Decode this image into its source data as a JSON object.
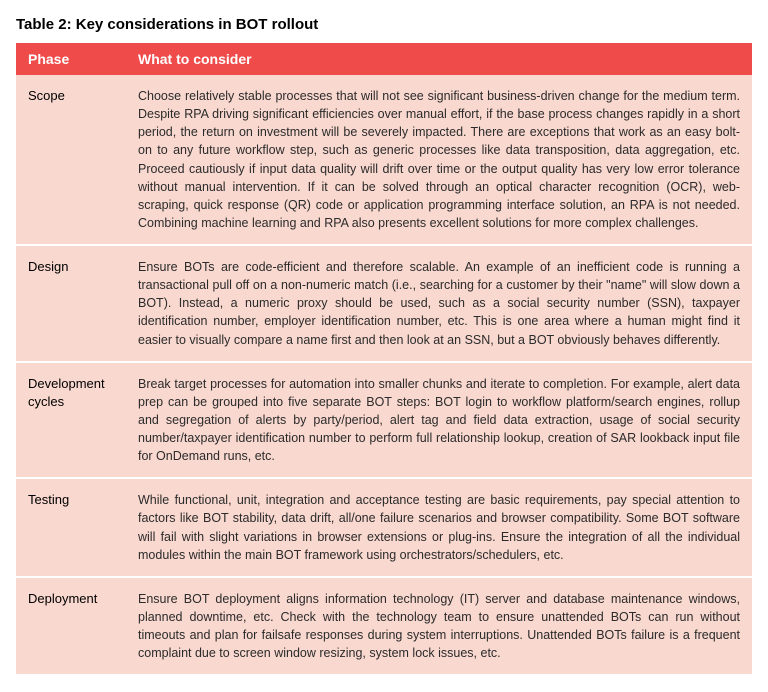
{
  "table": {
    "title": "Table 2:  Key considerations in BOT rollout",
    "columns": [
      "Phase",
      "What to consider"
    ],
    "header_bg": "#ef4b4b",
    "header_fg": "#ffffff",
    "body_bg": "#f9d8cf",
    "body_fg": "#2b2b2b",
    "rows": [
      {
        "phase": "Scope",
        "text": "Choose relatively stable processes that will not see significant business-driven change for the medium term. Despite RPA driving significant efficiencies over manual effort, if the base process changes rapidly in a short period, the return on investment will be severely impacted. There are exceptions that work as an easy bolt-on to any future workflow step, such as generic processes like data transposition, data aggregation, etc. Proceed cautiously if input data quality will drift over time or the output quality has very low error tolerance without manual intervention. If it can be solved through an optical character recognition (OCR), web-scraping, quick response (QR) code or application programming interface solution, an RPA is not needed. Combining machine learning and RPA also presents excellent solutions for more complex challenges."
      },
      {
        "phase": "Design",
        "text": "Ensure BOTs are code-efficient and therefore scalable. An example of an inefficient code is running a transactional pull off on a non-numeric match (i.e., searching for a customer by their \"name\" will slow down a BOT). Instead, a numeric proxy should be used, such as a social security number (SSN), taxpayer identification number, employer identification number, etc. This is one area where a human might find it easier to visually compare a name first and then look at an SSN, but a BOT obviously behaves differently."
      },
      {
        "phase": "Development cycles",
        "text": "Break target processes for automation into smaller chunks and iterate to completion. For example, alert data prep can be grouped into five separate BOT steps: BOT login to workflow platform/search engines, rollup and segregation of alerts by party/period, alert tag and field data extraction, usage of social security number/taxpayer identification number to perform full relationship lookup, creation of SAR lookback input file for OnDemand runs, etc."
      },
      {
        "phase": "Testing",
        "text": "While functional, unit, integration and acceptance testing are basic requirements, pay special attention to factors like BOT stability, data drift, all/one failure scenarios and browser compatibility. Some BOT software will fail with slight variations in browser extensions or plug-ins. Ensure the integration of all the individual modules within the main BOT framework using orchestrators/schedulers, etc."
      },
      {
        "phase": "Deployment",
        "text": "Ensure BOT deployment aligns information technology (IT) server and database maintenance windows, planned downtime, etc. Check with the technology team to ensure unattended BOTs can run without timeouts and plan for failsafe responses during system interruptions. Unattended BOTs failure is a frequent complaint due to screen window resizing, system lock issues, etc."
      }
    ]
  }
}
